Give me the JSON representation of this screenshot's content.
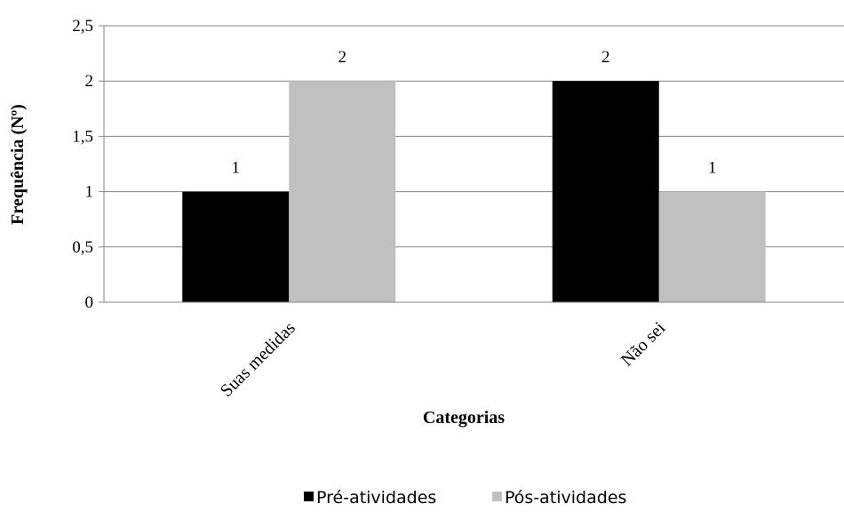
{
  "chart_data": {
    "type": "bar",
    "categories": [
      "Suas medidas",
      "Não sei"
    ],
    "series": [
      {
        "name": "Pré-atividades",
        "values": [
          1,
          2
        ],
        "color": "#000000"
      },
      {
        "name": "Pós-atividades",
        "values": [
          2,
          1
        ],
        "color": "#c0c0c0"
      }
    ],
    "data_labels": [
      [
        "1",
        "2"
      ],
      [
        "2",
        "1"
      ]
    ],
    "yticks": [
      "0",
      "0,5",
      "1",
      "1,5",
      "2",
      "2,5"
    ],
    "ytick_values": [
      0,
      0.5,
      1,
      1.5,
      2,
      2.5
    ],
    "ylim": [
      0,
      2.5
    ],
    "xlabel": "Categorias",
    "ylabel": "Frequência (Nº)",
    "grid": true,
    "legend_position": "bottom"
  }
}
